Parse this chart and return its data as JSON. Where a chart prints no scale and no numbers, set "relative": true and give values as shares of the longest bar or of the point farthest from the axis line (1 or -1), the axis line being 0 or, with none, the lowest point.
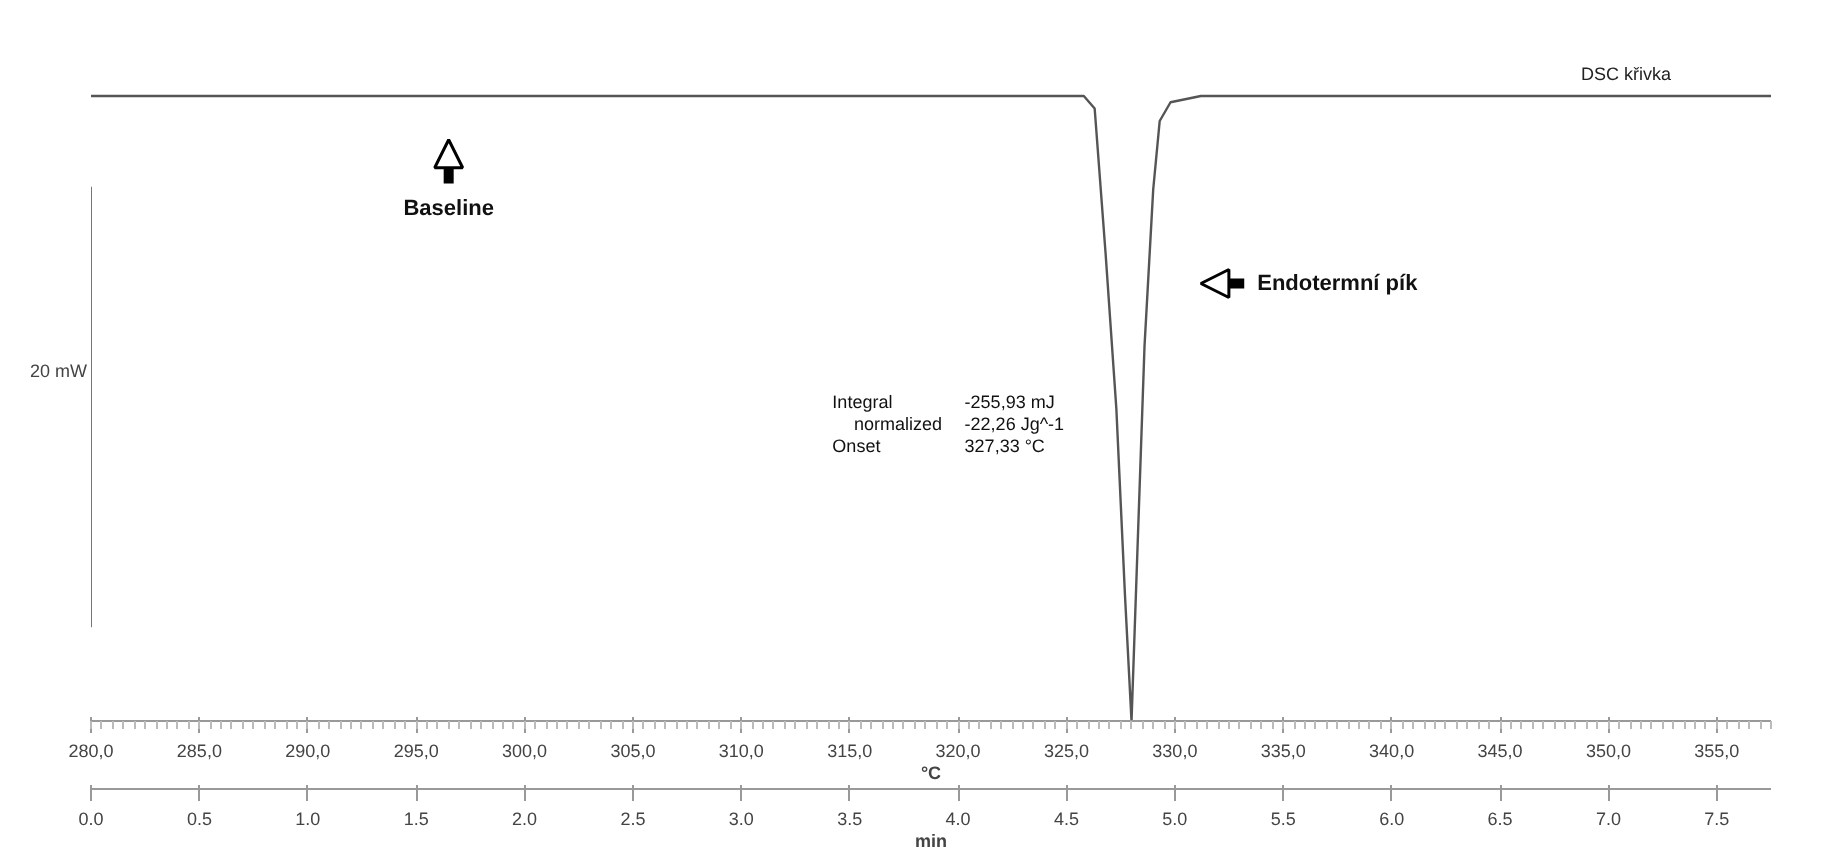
{
  "chart_data": {
    "type": "line",
    "relative": true,
    "x": [
      280,
      325.8,
      326.3,
      326.8,
      327.3,
      327.7,
      328.0,
      328.3,
      328.6,
      329.0,
      329.3,
      329.8,
      331.2,
      357.5
    ],
    "series": [
      {
        "name": "DSC křivka",
        "color": "#555555",
        "values": [
          1,
          1,
          0.98,
          0.75,
          0.5,
          0.2,
          0,
          0.3,
          0.6,
          0.85,
          0.96,
          0.99,
          1,
          1
        ]
      }
    ],
    "xlim": [
      280,
      357.5
    ],
    "xticks": [
      {
        "value": 280,
        "label": "280,0"
      },
      {
        "value": 285,
        "label": "285,0"
      },
      {
        "value": 290,
        "label": "290,0"
      },
      {
        "value": 295,
        "label": "295,0"
      },
      {
        "value": 300,
        "label": "300,0"
      },
      {
        "value": 305,
        "label": "305,0"
      },
      {
        "value": 310,
        "label": "310,0"
      },
      {
        "value": 315,
        "label": "315,0"
      },
      {
        "value": 320,
        "label": "320,0"
      },
      {
        "value": 325,
        "label": "325,0"
      },
      {
        "value": 330,
        "label": "330,0"
      },
      {
        "value": 335,
        "label": "335,0"
      },
      {
        "value": 340,
        "label": "340,0"
      },
      {
        "value": 345,
        "label": "345,0"
      },
      {
        "value": 350,
        "label": "350,0"
      },
      {
        "value": 355,
        "label": "355,0"
      }
    ],
    "xlabel": "°C",
    "x2lim": [
      0,
      7.75
    ],
    "x2ticks": [
      {
        "value": 0,
        "label": "0.0"
      },
      0.5,
      {
        "value": 1,
        "label": "1.0"
      },
      1.5,
      {
        "value": 2,
        "label": "2.0"
      },
      2.5,
      {
        "value": 3,
        "label": "3.0"
      },
      3.5,
      {
        "value": 4,
        "label": "4.0"
      },
      4.5,
      {
        "value": 5,
        "label": "5.0"
      },
      5.5,
      {
        "value": 6,
        "label": "6.0"
      },
      6.5,
      {
        "value": 7,
        "label": "7.0"
      },
      7.5
    ],
    "x2label": "min",
    "annotations": [
      "Baseline",
      "Endotermní pík",
      "20 mW",
      "Integral",
      "-255,93 mJ",
      "normalized",
      "-22,26 Jg^-1",
      "Onset",
      "327,33 °C"
    ]
  }
}
